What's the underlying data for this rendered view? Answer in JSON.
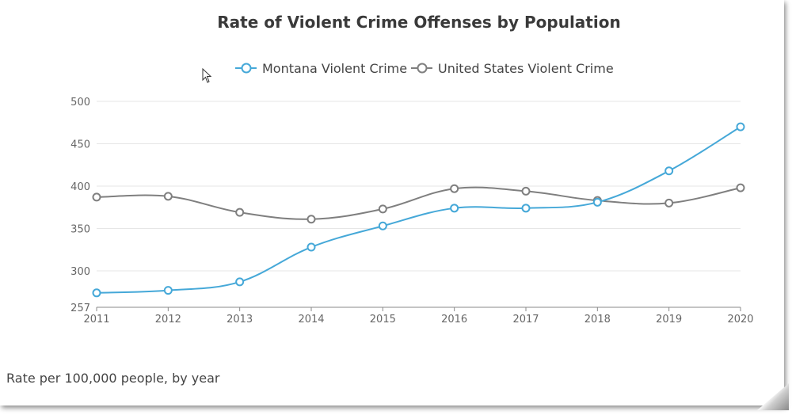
{
  "caption": "Rate per 100,000 people, by year",
  "chart_data": {
    "type": "line",
    "title": "Rate of Violent Crime Offenses by Population",
    "x": [
      "2011",
      "2012",
      "2013",
      "2014",
      "2015",
      "2016",
      "2017",
      "2018",
      "2019",
      "2020"
    ],
    "series": [
      {
        "name": "Montana Violent Crime",
        "color": "#45a8d8",
        "values": [
          274,
          277,
          287,
          328,
          353,
          374,
          374,
          381,
          418,
          470
        ]
      },
      {
        "name": "United States Violent Crime",
        "color": "#7f7f7f",
        "values": [
          387,
          388,
          369,
          361,
          373,
          397,
          394,
          383,
          380,
          398
        ]
      }
    ],
    "ylim": [
      257,
      500
    ],
    "yticks": [
      257,
      300,
      350,
      400,
      450,
      500
    ],
    "grid": true,
    "legend": "top-center",
    "xlabel": "",
    "ylabel": ""
  }
}
